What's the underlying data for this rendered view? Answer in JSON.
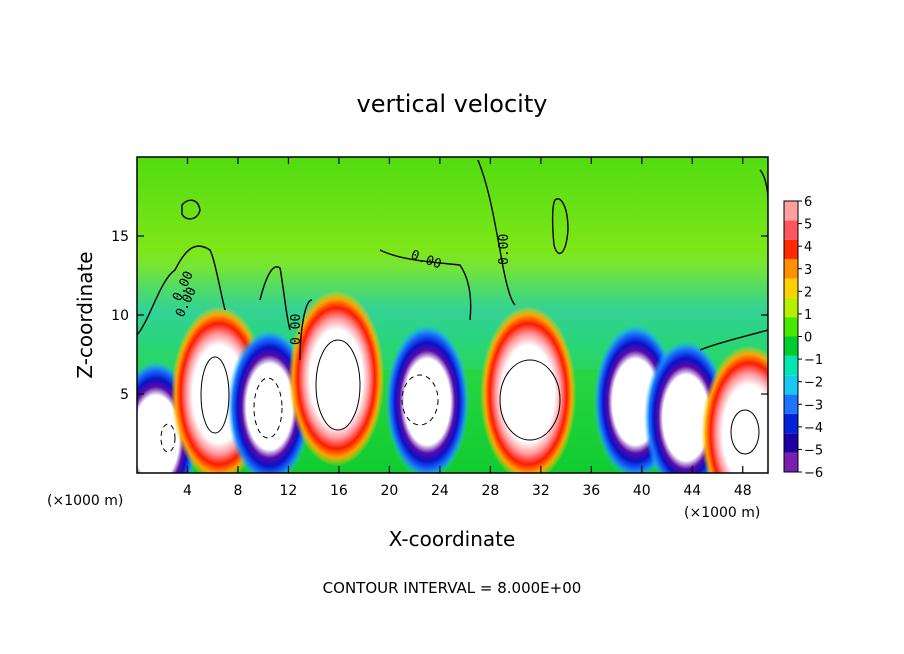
{
  "chart_data": {
    "type": "heatmap",
    "title": "vertical velocity",
    "xlabel": "X-coordinate",
    "ylabel": "Z-coordinate",
    "x_unit": "(×1000 m)",
    "footer": "CONTOUR INTERVAL = 8.000E+00",
    "xlim": [
      0,
      50
    ],
    "ylim": [
      0,
      20
    ],
    "xticks": [
      4,
      8,
      12,
      16,
      20,
      24,
      28,
      32,
      36,
      40,
      44,
      48
    ],
    "yticks": [
      5,
      10,
      15
    ],
    "colorbar": {
      "levels": [
        -6,
        -5,
        -4,
        -3,
        -2,
        -1,
        0,
        1,
        2,
        3,
        4,
        5,
        6
      ],
      "colors": [
        "#7a1fb0",
        "#1a00a0",
        "#0022d8",
        "#1e74ff",
        "#19c8f0",
        "#00e8b0",
        "#00cc30",
        "#48e800",
        "#b8ee00",
        "#ffd000",
        "#ff9000",
        "#ff2a00",
        "#ff5560",
        "#ffa0a0"
      ]
    },
    "contour_labels": [
      "0.00",
      "0.00",
      "0.00",
      "0.00",
      "0.00"
    ],
    "cells": [
      {
        "x": 1.5,
        "z": 2.2,
        "w": -6
      },
      {
        "x": 6.5,
        "z": 5.0,
        "w": 6
      },
      {
        "x": 10.5,
        "z": 4.2,
        "w": -6
      },
      {
        "x": 15.8,
        "z": 6.0,
        "w": 6
      },
      {
        "x": 23.0,
        "z": 4.5,
        "w": -6
      },
      {
        "x": 31.0,
        "z": 5.0,
        "w": 6
      },
      {
        "x": 39.5,
        "z": 4.5,
        "w": -6
      },
      {
        "x": 43.5,
        "z": 3.5,
        "w": -6
      },
      {
        "x": 48.5,
        "z": 2.5,
        "w": 6
      }
    ]
  }
}
